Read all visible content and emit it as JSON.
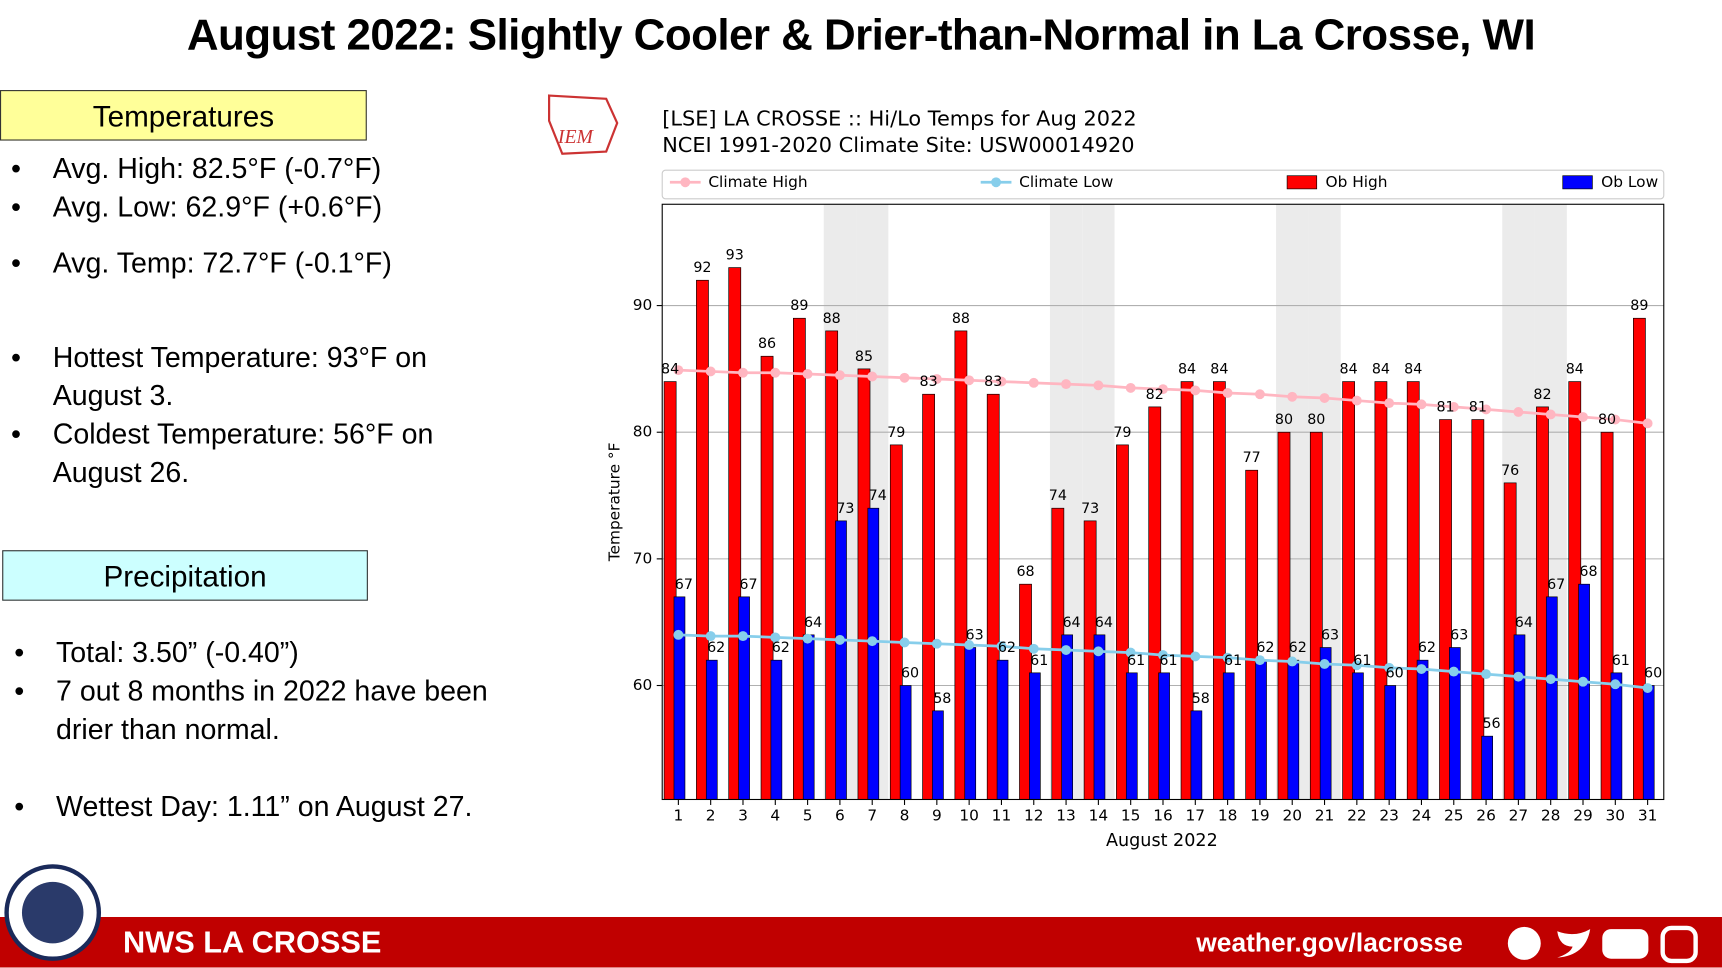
{
  "header": {
    "title": "August 2022:  Slightly Cooler & Drier-than-Normal in La Crosse, WI"
  },
  "temperatures": {
    "heading": "Temperatures",
    "items": [
      "Avg. High:  82.5°F (-0.7°F)",
      "Avg. Low:  62.9°F (+0.6°F)",
      "Avg. Temp:  72.7°F (-0.1°F)",
      "Hottest Temperature: 93°F on August 3.",
      "Coldest Temperature: 56°F on August 26."
    ]
  },
  "precipitation": {
    "heading": "Precipitation",
    "items": [
      "Total:  3.50” (-0.40”)",
      "7 out 8 months in 2022 have been drier than normal.",
      "Wettest Day: 1.11” on August 27."
    ]
  },
  "logo": {
    "label": "IEM"
  },
  "footer": {
    "office": "NWS LA CROSSE",
    "url": "weather.gov/lacrosse"
  },
  "chart_data": {
    "type": "bar",
    "title": "[LSE] LA CROSSE :: Hi/Lo Temps for Aug 2022",
    "subtitle": "NCEI 1991-2020 Climate Site: USW00014920",
    "x_label": "August 2022",
    "y_label": "Temperature °F",
    "categories": [
      "1",
      "2",
      "3",
      "4",
      "5",
      "6",
      "7",
      "8",
      "9",
      "10",
      "11",
      "12",
      "13",
      "14",
      "15",
      "16",
      "17",
      "18",
      "19",
      "20",
      "21",
      "22",
      "23",
      "24",
      "25",
      "26",
      "27",
      "28",
      "29",
      "30",
      "31"
    ],
    "ylim": [
      51,
      98
    ],
    "yticks": [
      60,
      70,
      80,
      90
    ],
    "grid": true,
    "legend": "top",
    "series": [
      {
        "name": "Climate High",
        "type": "line",
        "color": "#ffb6c1",
        "values": [
          84.9,
          84.8,
          84.7,
          84.7,
          84.6,
          84.5,
          84.4,
          84.3,
          84.2,
          84.1,
          84.0,
          83.9,
          83.8,
          83.7,
          83.5,
          83.4,
          83.3,
          83.1,
          83.0,
          82.8,
          82.7,
          82.5,
          82.3,
          82.2,
          82.0,
          81.8,
          81.6,
          81.4,
          81.2,
          81.0,
          80.7
        ]
      },
      {
        "name": "Climate Low",
        "type": "line",
        "color": "#87ceeb",
        "values": [
          64.0,
          63.9,
          63.9,
          63.8,
          63.7,
          63.6,
          63.5,
          63.4,
          63.3,
          63.2,
          63.1,
          62.9,
          62.8,
          62.7,
          62.6,
          62.4,
          62.3,
          62.2,
          62.0,
          61.9,
          61.7,
          61.6,
          61.4,
          61.3,
          61.1,
          60.9,
          60.7,
          60.5,
          60.3,
          60.1,
          59.8
        ]
      },
      {
        "name": "Ob High",
        "type": "bar",
        "color": "#ff0000",
        "values": [
          84,
          92,
          93,
          86,
          89,
          88,
          85,
          79,
          83,
          88,
          83,
          68,
          74,
          73,
          79,
          82,
          84,
          84,
          77,
          80,
          80,
          84,
          84,
          84,
          81,
          81,
          76,
          82,
          84,
          80,
          89
        ]
      },
      {
        "name": "Ob Low",
        "type": "bar",
        "color": "#0000ff",
        "values": [
          67,
          62,
          67,
          62,
          64,
          73,
          74,
          60,
          58,
          63,
          62,
          61,
          64,
          64,
          61,
          61,
          58,
          61,
          62,
          62,
          63,
          61,
          60,
          62,
          63,
          56,
          64,
          67,
          68,
          61,
          60
        ]
      }
    ]
  }
}
